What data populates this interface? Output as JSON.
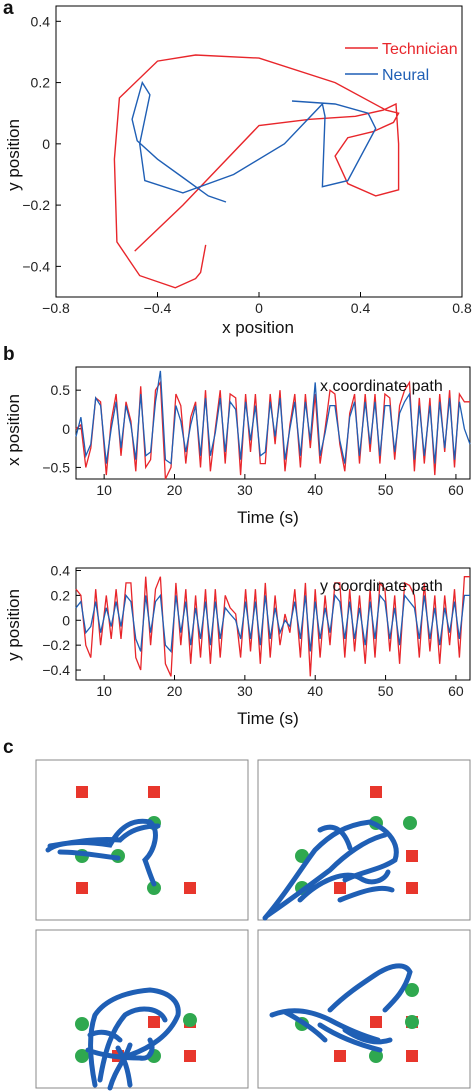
{
  "panels": {
    "a": "a",
    "b": "b",
    "c": "c"
  },
  "colors": {
    "technician": "#e8262b",
    "neural": "#1f5fb5",
    "target_square": "#e8362c",
    "target_circle": "#2fa84f",
    "trace": "#1f5fb5"
  },
  "chart_data": [
    {
      "type": "line",
      "panel": "a",
      "xlabel": "x position",
      "ylabel": "y position",
      "xlim": [
        -0.8,
        0.8
      ],
      "ylim": [
        -0.5,
        0.45
      ],
      "xticks": [
        "−0.8",
        "−0.4",
        "0",
        "0.4",
        "0.8"
      ],
      "yticks": [
        "0.4",
        "0.2",
        "0",
        "−0.2",
        "−0.4"
      ],
      "legend_position": "top-right",
      "series": [
        {
          "name": "Technician",
          "color": "#e8262b",
          "x": [
            -0.21,
            -0.23,
            -0.25,
            -0.33,
            -0.47,
            -0.56,
            -0.57,
            -0.55,
            -0.4,
            -0.25,
            0.0,
            0.3,
            0.5,
            0.55,
            0.53,
            0.45,
            0.35,
            0.3,
            0.35,
            0.46,
            0.55,
            0.55,
            0.54,
            0.49,
            0.38,
            0.2,
            0.0,
            -0.3,
            -0.49
          ],
          "y": [
            -0.33,
            -0.42,
            -0.44,
            -0.47,
            -0.43,
            -0.32,
            -0.05,
            0.15,
            0.27,
            0.29,
            0.28,
            0.2,
            0.11,
            0.1,
            0.07,
            0.04,
            0.02,
            -0.04,
            -0.13,
            -0.17,
            -0.15,
            0.0,
            0.13,
            0.11,
            0.09,
            0.08,
            0.06,
            -0.2,
            -0.35
          ]
        },
        {
          "name": "Neural",
          "color": "#1f5fb5",
          "x": [
            -0.13,
            -0.2,
            -0.3,
            -0.4,
            -0.48,
            -0.5,
            -0.46,
            -0.43,
            -0.47,
            -0.45,
            -0.3,
            -0.1,
            0.1,
            0.25,
            0.26,
            0.25,
            0.35,
            0.46,
            0.43,
            0.3,
            0.13
          ],
          "y": [
            -0.19,
            -0.17,
            -0.11,
            -0.05,
            0.01,
            0.08,
            0.2,
            0.16,
            0.0,
            -0.12,
            -0.16,
            -0.1,
            0.0,
            0.13,
            0.09,
            -0.14,
            -0.12,
            0.05,
            0.1,
            0.13,
            0.14
          ]
        }
      ]
    },
    {
      "type": "line",
      "panel": "b-top",
      "title": "x coordinate path",
      "xlabel": "Time (s)",
      "ylabel": "x position",
      "xlim": [
        6,
        62
      ],
      "ylim": [
        -0.65,
        0.8
      ],
      "xticks": [
        "10",
        "20",
        "30",
        "40",
        "50",
        "60"
      ],
      "yticks": [
        "0.5",
        "0",
        "−0.5"
      ],
      "series": [
        {
          "name": "Technician",
          "color": "#e8262b",
          "x": [
            6.0,
            6.7,
            7.4,
            8.1,
            8.8,
            9.5,
            10.3,
            11.0,
            11.7,
            12.4,
            13.1,
            13.8,
            14.5,
            15.2,
            15.9,
            16.6,
            17.3,
            18.0,
            18.7,
            19.5,
            20.2,
            20.9,
            21.6,
            22.3,
            23.0,
            23.7,
            24.4,
            25.1,
            25.8,
            26.5,
            27.2,
            27.9,
            28.7,
            29.4,
            30.1,
            30.8,
            31.5,
            32.2,
            32.9,
            33.6,
            34.3,
            35.0,
            35.7,
            36.4,
            37.1,
            37.9,
            38.6,
            39.3,
            40.0,
            40.7,
            41.4,
            42.1,
            42.8,
            43.5,
            44.2,
            44.9,
            45.6,
            46.3,
            47.1,
            47.8,
            48.5,
            49.2,
            49.9,
            50.6,
            51.3,
            52.0,
            52.7,
            53.4,
            54.1,
            54.8,
            55.5,
            56.3,
            57.0,
            57.7,
            58.4,
            59.1,
            59.8,
            60.5,
            61.2,
            62.0
          ],
          "y": [
            0.0,
            0.05,
            -0.5,
            -0.25,
            0.4,
            0.35,
            -0.6,
            0.1,
            0.45,
            -0.35,
            0.35,
            0.1,
            -0.55,
            0.55,
            -0.5,
            -0.4,
            0.5,
            0.6,
            -0.65,
            -0.5,
            0.45,
            0.3,
            -0.45,
            0.15,
            0.35,
            -0.5,
            0.5,
            -0.55,
            0.0,
            0.5,
            -0.45,
            0.45,
            0.4,
            -0.6,
            0.45,
            -0.3,
            0.45,
            -0.45,
            -0.45,
            0.45,
            -0.2,
            0.5,
            -0.55,
            0.05,
            0.45,
            -0.5,
            0.45,
            -0.25,
            0.45,
            -0.45,
            0.0,
            0.5,
            0.45,
            -0.2,
            -0.55,
            0.2,
            0.45,
            -0.45,
            0.45,
            -0.3,
            0.45,
            -0.45,
            0.45,
            0.4,
            -0.4,
            0.3,
            0.5,
            0.6,
            -0.55,
            0.4,
            -0.45,
            0.4,
            -0.6,
            0.45,
            -0.3,
            0.5,
            -0.5,
            0.45,
            0.35,
            0.35
          ]
        },
        {
          "name": "Neural",
          "color": "#1f5fb5",
          "x": [
            6.0,
            6.7,
            7.4,
            8.1,
            8.8,
            9.5,
            10.3,
            11.0,
            11.7,
            12.4,
            13.1,
            13.8,
            14.5,
            15.2,
            15.9,
            16.6,
            17.3,
            18.0,
            18.7,
            19.5,
            20.2,
            20.9,
            21.6,
            22.3,
            23.0,
            23.7,
            24.4,
            25.1,
            25.8,
            26.5,
            27.2,
            27.9,
            28.7,
            29.4,
            30.1,
            30.8,
            31.5,
            32.2,
            32.9,
            33.6,
            34.3,
            35.0,
            35.7,
            36.4,
            37.1,
            37.9,
            38.6,
            39.3,
            40.0,
            40.7,
            41.4,
            42.1,
            42.8,
            43.5,
            44.2,
            44.9,
            45.6,
            46.3,
            47.1,
            47.8,
            48.5,
            49.2,
            49.9,
            50.6,
            51.3,
            52.0,
            52.7,
            53.4,
            54.1,
            54.8,
            55.5,
            56.3,
            57.0,
            57.7,
            58.4,
            59.1,
            59.8,
            60.5,
            61.2,
            62.0
          ],
          "y": [
            -0.1,
            0.15,
            -0.35,
            -0.2,
            0.4,
            0.3,
            -0.45,
            0.0,
            0.35,
            -0.25,
            0.3,
            0.05,
            -0.4,
            0.45,
            -0.35,
            -0.3,
            0.35,
            0.75,
            -0.4,
            -0.45,
            0.3,
            0.1,
            -0.3,
            0.05,
            0.3,
            -0.35,
            0.4,
            -0.35,
            -0.05,
            0.4,
            -0.3,
            0.35,
            0.25,
            -0.4,
            0.35,
            -0.15,
            0.3,
            -0.35,
            -0.3,
            0.35,
            -0.1,
            0.4,
            -0.4,
            0.0,
            0.35,
            -0.35,
            0.35,
            -0.15,
            0.6,
            -0.35,
            -0.05,
            0.3,
            0.3,
            -0.15,
            -0.45,
            0.15,
            0.35,
            -0.35,
            0.35,
            -0.2,
            0.35,
            -0.35,
            0.3,
            0.3,
            -0.3,
            0.2,
            0.35,
            0.45,
            -0.4,
            0.3,
            -0.35,
            0.3,
            -0.45,
            0.35,
            -0.25,
            0.4,
            -0.4,
            0.35,
            0.0,
            -0.2
          ]
        }
      ]
    },
    {
      "type": "line",
      "panel": "b-bottom",
      "title": "y coordinate path",
      "xlabel": "Time (s)",
      "ylabel": "y position",
      "xlim": [
        6,
        62
      ],
      "ylim": [
        -0.48,
        0.42
      ],
      "xticks": [
        "10",
        "20",
        "30",
        "40",
        "50",
        "60"
      ],
      "yticks": [
        "0.4",
        "0.2",
        "0",
        "−0.2",
        "−0.4"
      ],
      "series": [
        {
          "name": "Technician",
          "color": "#e8262b",
          "x": [
            6.0,
            6.7,
            7.4,
            8.1,
            8.8,
            9.5,
            10.3,
            11.0,
            11.7,
            12.4,
            13.1,
            13.8,
            14.5,
            15.2,
            15.9,
            16.6,
            17.3,
            18.0,
            18.7,
            19.5,
            20.2,
            20.9,
            21.6,
            22.3,
            23.0,
            23.7,
            24.4,
            25.1,
            25.8,
            26.5,
            27.2,
            27.9,
            28.7,
            29.4,
            30.1,
            30.8,
            31.5,
            32.2,
            32.9,
            33.6,
            34.3,
            35.0,
            35.7,
            36.4,
            37.1,
            37.9,
            38.6,
            39.3,
            40.0,
            40.7,
            41.4,
            42.1,
            42.8,
            43.5,
            44.2,
            44.9,
            45.6,
            46.3,
            47.1,
            47.8,
            48.5,
            49.2,
            49.9,
            50.6,
            51.3,
            52.0,
            52.7,
            53.4,
            54.1,
            54.8,
            55.5,
            56.3,
            57.0,
            57.7,
            58.4,
            59.1,
            59.8,
            60.5,
            61.2,
            62.0
          ],
          "y": [
            0.25,
            0.2,
            -0.2,
            -0.3,
            0.25,
            -0.2,
            0.2,
            -0.15,
            0.25,
            -0.15,
            0.3,
            0.3,
            -0.3,
            -0.4,
            0.35,
            -0.2,
            0.25,
            0.35,
            -0.35,
            -0.45,
            0.3,
            -0.2,
            0.25,
            -0.35,
            0.2,
            -0.3,
            0.25,
            -0.35,
            0.25,
            -0.3,
            0.2,
            0.1,
            0.05,
            -0.3,
            0.25,
            -0.25,
            0.25,
            -0.35,
            0.3,
            -0.3,
            0.2,
            -0.2,
            0.05,
            -0.1,
            0.25,
            -0.3,
            0.3,
            -0.45,
            0.25,
            -0.3,
            0.2,
            -0.2,
            0.3,
            0.3,
            -0.3,
            0.25,
            -0.25,
            0.2,
            -0.35,
            0.25,
            -0.3,
            0.3,
            0.25,
            -0.25,
            0.2,
            -0.35,
            0.3,
            0.28,
            0.2,
            -0.3,
            0.3,
            -0.25,
            0.2,
            -0.35,
            0.2,
            -0.2,
            0.25,
            -0.3,
            0.35,
            0.35
          ]
        },
        {
          "name": "Neural",
          "color": "#1f5fb5",
          "x": [
            6.0,
            6.7,
            7.4,
            8.1,
            8.8,
            9.5,
            10.3,
            11.0,
            11.7,
            12.4,
            13.1,
            13.8,
            14.5,
            15.2,
            15.9,
            16.6,
            17.3,
            18.0,
            18.7,
            19.5,
            20.2,
            20.9,
            21.6,
            22.3,
            23.0,
            23.7,
            24.4,
            25.1,
            25.8,
            26.5,
            27.2,
            27.9,
            28.7,
            29.4,
            30.1,
            30.8,
            31.5,
            32.2,
            32.9,
            33.6,
            34.3,
            35.0,
            35.7,
            36.4,
            37.1,
            37.9,
            38.6,
            39.3,
            40.0,
            40.7,
            41.4,
            42.1,
            42.8,
            43.5,
            44.2,
            44.9,
            45.6,
            46.3,
            47.1,
            47.8,
            48.5,
            49.2,
            49.9,
            50.6,
            51.3,
            52.0,
            52.7,
            53.4,
            54.1,
            54.8,
            55.5,
            56.3,
            57.0,
            57.7,
            58.4,
            59.1,
            59.8,
            60.5,
            61.2,
            62.0
          ],
          "y": [
            0.1,
            0.15,
            -0.1,
            -0.05,
            0.15,
            -0.1,
            0.1,
            -0.05,
            0.15,
            -0.05,
            0.2,
            0.15,
            -0.15,
            -0.25,
            0.2,
            -0.1,
            0.15,
            0.2,
            -0.2,
            -0.25,
            0.2,
            -0.1,
            0.15,
            -0.2,
            0.1,
            -0.15,
            0.15,
            -0.2,
            0.15,
            -0.15,
            0.1,
            0.05,
            0.0,
            -0.15,
            0.15,
            -0.15,
            0.15,
            -0.2,
            0.2,
            -0.15,
            0.1,
            -0.1,
            0.0,
            -0.05,
            0.15,
            -0.15,
            0.2,
            -0.25,
            0.15,
            -0.15,
            0.1,
            -0.1,
            0.2,
            0.15,
            -0.15,
            0.15,
            -0.15,
            0.1,
            -0.2,
            0.15,
            -0.15,
            0.2,
            0.15,
            -0.15,
            0.1,
            -0.2,
            0.2,
            0.15,
            0.1,
            -0.15,
            0.2,
            -0.15,
            0.1,
            -0.2,
            0.1,
            -0.1,
            0.15,
            -0.15,
            0.2,
            0.2
          ]
        }
      ]
    }
  ]
}
